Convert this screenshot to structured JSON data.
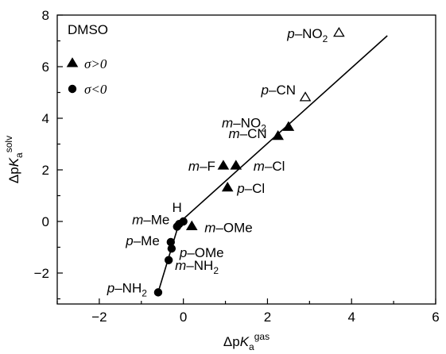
{
  "chart_data": {
    "type": "scatter",
    "title": "",
    "panel_label": "DMSO",
    "xlabel": {
      "prefix": "ΔpK",
      "sub": "a",
      "sup": "gas"
    },
    "ylabel": {
      "prefix": "ΔpK",
      "sub": "a",
      "sup": "solv"
    },
    "xlim": [
      -3,
      6
    ],
    "ylim": [
      -3.2,
      8
    ],
    "x_ticks": [
      -2,
      0,
      2,
      4,
      6
    ],
    "x_tick_labels": [
      "−2",
      "0",
      "2",
      "4",
      "6"
    ],
    "y_ticks": [
      -2,
      0,
      2,
      4,
      6,
      8
    ],
    "y_tick_labels": [
      "−2",
      "0",
      "2",
      "4",
      "6",
      "8"
    ],
    "grid": false,
    "legend": {
      "position": "top-left",
      "entries": [
        {
          "symbol": "triangle-filled",
          "label": "σ>0"
        },
        {
          "symbol": "circle-filled",
          "label": "σ<0"
        }
      ]
    },
    "points": [
      {
        "label": "p-NO2",
        "x": 3.7,
        "y": 7.3,
        "marker": "triangle-open"
      },
      {
        "label": "p-CN",
        "x": 2.9,
        "y": 4.8,
        "marker": "triangle-open"
      },
      {
        "label": "m-NO2",
        "x": 2.5,
        "y": 3.65,
        "marker": "triangle-filled"
      },
      {
        "label": "m-CN",
        "x": 2.25,
        "y": 3.3,
        "marker": "triangle-filled"
      },
      {
        "label": "m-F",
        "x": 0.95,
        "y": 2.15,
        "marker": "triangle-filled"
      },
      {
        "label": "m-Cl",
        "x": 1.25,
        "y": 2.15,
        "marker": "triangle-filled"
      },
      {
        "label": "p-Cl",
        "x": 1.05,
        "y": 1.3,
        "marker": "triangle-filled"
      },
      {
        "label": "m-OMe",
        "x": 0.2,
        "y": -0.2,
        "marker": "triangle-filled"
      },
      {
        "label": "H",
        "x": 0.0,
        "y": 0.0,
        "marker": "circle-filled"
      },
      {
        "label": "m-Me",
        "x": -0.1,
        "y": -0.1,
        "marker": "circle-filled"
      },
      {
        "label": "",
        "x": -0.15,
        "y": -0.2,
        "marker": "circle-filled"
      },
      {
        "label": "p-Me",
        "x": -0.3,
        "y": -0.8,
        "marker": "circle-filled"
      },
      {
        "label": "p-OMe",
        "x": -0.28,
        "y": -1.05,
        "marker": "circle-filled"
      },
      {
        "label": "m-NH2",
        "x": -0.35,
        "y": -1.5,
        "marker": "circle-filled"
      },
      {
        "label": "p-NH2",
        "x": -0.6,
        "y": -2.75,
        "marker": "circle-filled"
      }
    ],
    "fit_line": [
      [
        -0.6,
        -2.75
      ],
      [
        -0.1,
        -0.05
      ],
      [
        4.85,
        7.2
      ]
    ],
    "annotations": [
      {
        "target": "p-NO2",
        "text": "p",
        "rest": "–NO",
        "sub": "2",
        "anchor": "end"
      },
      {
        "target": "p-CN",
        "text": "p",
        "rest": "–CN",
        "sub": "",
        "anchor": "end"
      },
      {
        "target": "m-NO2",
        "text": "m",
        "rest": "–NO",
        "sub": "2",
        "anchor": "end"
      },
      {
        "target": "m-CN",
        "text": "m",
        "rest": "–CN",
        "sub": "",
        "anchor": "end"
      },
      {
        "target": "m-F",
        "text": "m",
        "rest": "–F",
        "sub": "",
        "anchor": "end"
      },
      {
        "target": "m-Cl",
        "text": "m",
        "rest": "–Cl",
        "sub": "",
        "anchor": "start"
      },
      {
        "target": "p-Cl",
        "text": "p",
        "rest": "–Cl",
        "sub": "",
        "anchor": "start"
      },
      {
        "target": "m-OMe",
        "text": "m",
        "rest": "–OMe",
        "sub": "",
        "anchor": "start"
      },
      {
        "target": "H",
        "text": "",
        "rest": "H",
        "sub": "",
        "anchor": "middle"
      },
      {
        "target": "m-Me",
        "text": "m",
        "rest": "–Me",
        "sub": "",
        "anchor": "end"
      },
      {
        "target": "p-Me",
        "text": "p",
        "rest": "–Me",
        "sub": "",
        "anchor": "end"
      },
      {
        "target": "p-OMe",
        "text": "p",
        "rest": "–OMe",
        "sub": "",
        "anchor": "start"
      },
      {
        "target": "m-NH2",
        "text": "m",
        "rest": "–NH",
        "sub": "2",
        "anchor": "start"
      },
      {
        "target": "p-NH2",
        "text": "p",
        "rest": "–NH",
        "sub": "2",
        "anchor": "end"
      }
    ]
  }
}
